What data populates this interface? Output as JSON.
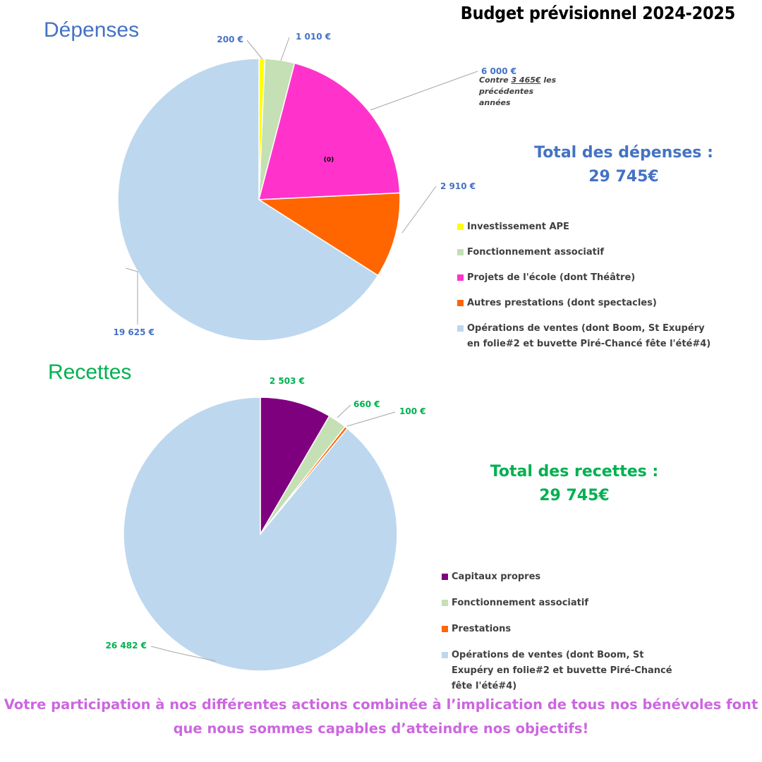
{
  "title": "Budget prévisionnel 2024-2025",
  "colors": {
    "depenses_heading": "#4472c4",
    "recettes_heading": "#00b050",
    "footer": "#cc66e0"
  },
  "depenses": {
    "heading": "Dépenses",
    "total_line1": "Total des dépenses :",
    "total_line2": "29 745€",
    "note": {
      "prefix": "Contre ",
      "amount": "3 465€",
      "suffix": " les précédentes années"
    },
    "center_label": "(0)"
  },
  "recettes": {
    "heading": "Recettes",
    "total_line1": "Total des recettes :",
    "total_line2": "29 745€"
  },
  "footer": {
    "line1": "Votre participation à nos différentes actions combinée à l’implication de tous nos bénévoles font",
    "line2": "que nous sommes capables d’atteindre nos objectifs!"
  },
  "chart_data": [
    {
      "type": "pie",
      "title": "Dépenses",
      "labels": [
        "Investissement APE",
        "Fonctionnement associatif",
        "Projets de l'école (dont Théâtre)",
        "Autres prestations (dont spectacles)",
        "Opérations de ventes (dont Boom, St Exupéry en folie#2 et buvette Piré-Chancé fête l'été#4)"
      ],
      "values": [
        200,
        1010,
        6000,
        2910,
        19625
      ],
      "data_labels": [
        "200 €",
        "1 010 €",
        "6 000 €",
        "2 910 €",
        "19 625 €"
      ],
      "colors": [
        "#ffff00",
        "#c5e0b4",
        "#ff33cc",
        "#ff6600",
        "#bdd7ee"
      ],
      "legend_position": "right"
    },
    {
      "type": "pie",
      "title": "Recettes",
      "labels": [
        "Capitaux propres",
        "Fonctionnement associatif",
        "Prestations",
        "Opérations de ventes (dont Boom, St Exupéry en folie#2 et buvette Piré-Chancé fête l'été#4)"
      ],
      "values": [
        2503,
        660,
        100,
        26482
      ],
      "data_labels": [
        "2 503 €",
        "660 €",
        "100 €",
        "26 482 €"
      ],
      "colors": [
        "#7f007f",
        "#c5e0b4",
        "#ff6600",
        "#bdd7ee"
      ],
      "legend_position": "right"
    }
  ]
}
